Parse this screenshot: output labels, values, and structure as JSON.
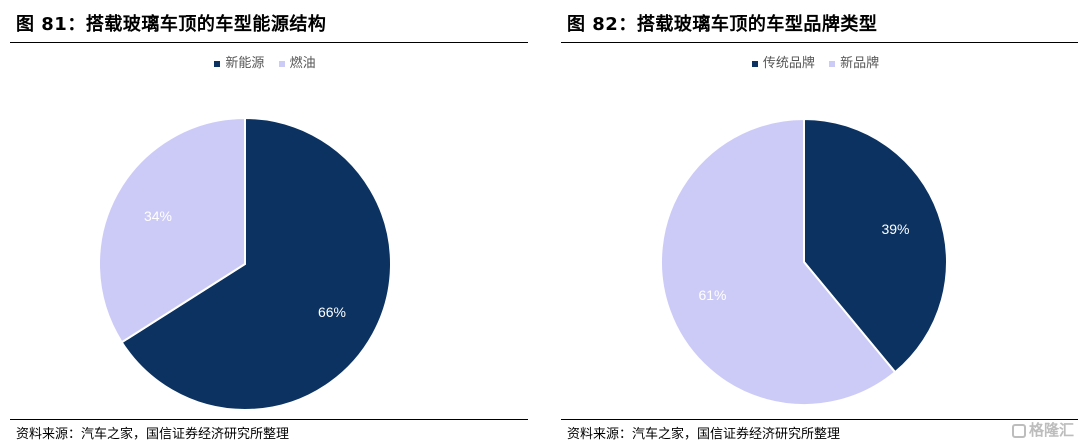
{
  "colors": {
    "navy": "#0b3260",
    "lavender": "#cccbf7"
  },
  "charts": [
    {
      "title": "图 81：搭载玻璃车顶的车型能源结构",
      "source": "资料来源：汽车之家，国信证券经济研究所整理",
      "chart_data": {
        "type": "pie",
        "title": "图 81：搭载玻璃车顶的车型能源结构",
        "legend_position": "top-center",
        "slices": [
          {
            "label": "新能源",
            "value": 66,
            "value_label": "66%",
            "color": "#0b3260"
          },
          {
            "label": "燃油",
            "value": 34,
            "value_label": "34%",
            "color": "#cccbf7"
          }
        ]
      }
    },
    {
      "title": "图 82：搭载玻璃车顶的车型品牌类型",
      "source": "资料来源：汽车之家，国信证券经济研究所整理",
      "chart_data": {
        "type": "pie",
        "title": "图 82：搭载玻璃车顶的车型品牌类型",
        "legend_position": "top-center",
        "slices": [
          {
            "label": "传统品牌",
            "value": 39,
            "value_label": "39%",
            "color": "#0b3260"
          },
          {
            "label": "新品牌",
            "value": 61,
            "value_label": "61%",
            "color": "#cccbf7"
          }
        ]
      }
    }
  ],
  "watermark": {
    "text": "格隆汇",
    "icon": "glh-logo-icon"
  }
}
